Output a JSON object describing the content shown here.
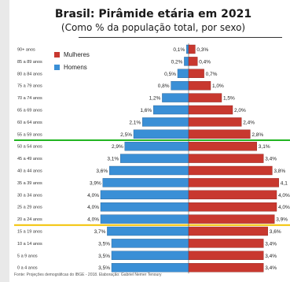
{
  "chart_data": {
    "type": "bar",
    "title": "Brasil: Pirâmide etária em 2021",
    "subtitle": "(Como % da população total, por sexo)",
    "categories": [
      "90+ anos",
      "85 a 89 anos",
      "80 a 84 anos",
      "75 a 79 anos",
      "70 a 74 anos",
      "65 a 69 anos",
      "60 a 64 anos",
      "55 a 59 anos",
      "50 a 54 anos",
      "45 a 49 anos",
      "40 a 44 anos",
      "35 a 39 anos",
      "30 a 34 anos",
      "25 a 29 anos",
      "20 a 24 anos",
      "15 a 19 anos",
      "10 a 14 anos",
      "5 a 9 anos",
      "0 a 4 anos"
    ],
    "series": [
      {
        "name": "Mulheres",
        "color": "#c8382f",
        "values": [
          0.3,
          0.4,
          0.7,
          1.0,
          1.5,
          2.0,
          2.4,
          2.8,
          3.1,
          3.4,
          3.8,
          4.1,
          4.0,
          4.0,
          3.9,
          3.6,
          3.4,
          3.4,
          3.4
        ],
        "labels": [
          "0,3%",
          "0,4%",
          "0,7%",
          "1,0%",
          "1,5%",
          "2,0%",
          "2,4%",
          "2,8%",
          "3,1%",
          "3,4%",
          "3,8%",
          "4,1",
          "4,0%",
          "4,0%",
          "3,9%",
          "3,6%",
          "3,4%",
          "3,4%",
          "3,4%"
        ]
      },
      {
        "name": "Homens",
        "color": "#3a8fd6",
        "values": [
          0.1,
          0.2,
          0.5,
          0.8,
          1.2,
          1.6,
          2.1,
          2.5,
          2.9,
          3.1,
          3.6,
          3.9,
          4.0,
          4.0,
          4.0,
          3.7,
          3.5,
          3.5,
          3.5
        ],
        "labels": [
          "0,1%",
          "0,2%",
          "0,5%",
          "0,8%",
          "1,2%",
          "1,6%",
          "2,1%",
          "2,5%",
          "2,9%",
          "3,1%",
          "3,6%",
          "3,9%",
          "4,0%",
          "4,0%",
          "4,0%",
          "3,7%",
          "3,5%",
          "3,5%",
          "3,5%"
        ]
      }
    ],
    "legend": "top-left",
    "grid": false,
    "reference_lines": [
      {
        "color": "#22b522",
        "between": [
          "55 a 59 anos",
          "50 a 54 anos"
        ]
      },
      {
        "color": "#f2c200",
        "between": [
          "20 a 24 anos",
          "15 a 19 anos"
        ]
      }
    ],
    "source": "Fonte: Projeções demográficas do IBGE - 2018. Elaboração: Gabriel Nemer Tenoury"
  }
}
